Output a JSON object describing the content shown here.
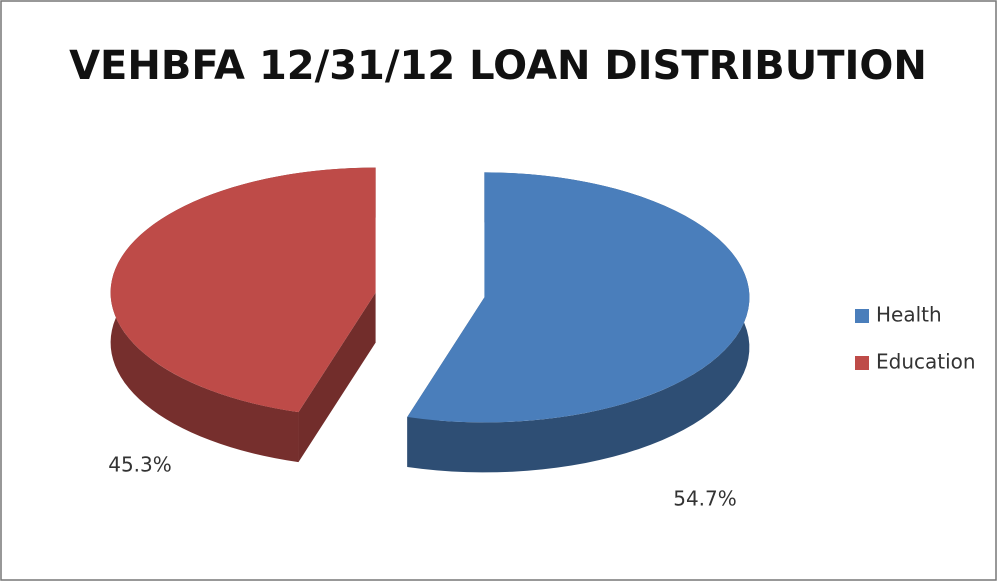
{
  "chart_data": {
    "type": "pie",
    "title": "VEHBFA 12/31/12 LOAN DISTRIBUTION",
    "categories": [
      "Health",
      "Education"
    ],
    "values": [
      54.7,
      45.3
    ],
    "value_labels": [
      "54.7%",
      "45.3%"
    ],
    "colors": [
      "#4a7ebb",
      "#be4b48"
    ],
    "legend": "right",
    "three_d": true,
    "exploded": true
  }
}
